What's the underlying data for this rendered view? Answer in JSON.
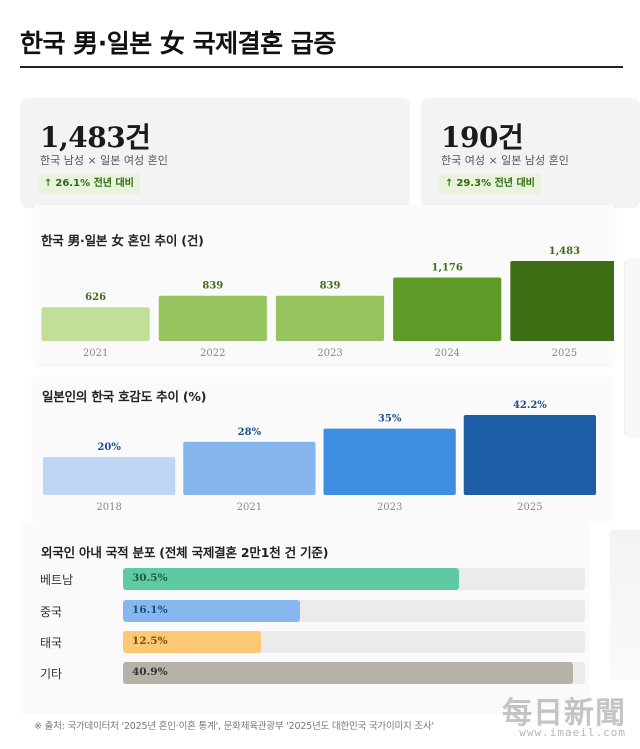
{
  "headline": "한국 男·일본 女 국제결혼 급증",
  "stats": [
    {
      "value": "1,483건",
      "desc": "한국 남성 × 일본 여성 혼인",
      "badge_arrow": "↑",
      "badge": "26.1% 전년 대비"
    },
    {
      "value": "190건",
      "desc": "한국 여성 × 일본 남성 혼인",
      "badge_arrow": "↑",
      "badge": "29.3% 전년 대비"
    }
  ],
  "chart_data": [
    {
      "type": "bar",
      "title": "한국 男·일본 女 혼인 추이 (건)",
      "categories": [
        "2021",
        "2022",
        "2023",
        "2024",
        "2025"
      ],
      "values": [
        626,
        839,
        839,
        1176,
        1483
      ],
      "value_labels": [
        "626",
        "839",
        "839",
        "1,176",
        "1,483"
      ],
      "colors": [
        "#c2df9a",
        "#97c45e",
        "#97c45e",
        "#5e9a26",
        "#3e6d14"
      ],
      "label_color": "#3e6d14",
      "ylim": [
        0,
        1483
      ]
    },
    {
      "type": "bar",
      "title": "일본인의 한국 호감도 추이 (%)",
      "categories": [
        "2018",
        "2021",
        "2023",
        "2025"
      ],
      "values": [
        20,
        28,
        35,
        42.2
      ],
      "value_labels": [
        "20%",
        "28%",
        "35%",
        "42.2%"
      ],
      "colors": [
        "#bcd6f4",
        "#84b6ed",
        "#3d8ee0",
        "#1e5ea6"
      ],
      "label_color": "#1e4e8c",
      "ylim": [
        0,
        42.2
      ]
    },
    {
      "type": "bar",
      "orientation": "horizontal",
      "title": "외국인 아내 국적 분포 (전체 국제결혼 2만1천 건 기준)",
      "categories": [
        "베트남",
        "중국",
        "태국",
        "기타"
      ],
      "values": [
        30.5,
        16.1,
        12.5,
        40.9
      ],
      "value_labels": [
        "30.5%",
        "16.1%",
        "12.5%",
        "40.9%"
      ],
      "colors": [
        "#5ecaa2",
        "#86b7ee",
        "#fdc873",
        "#b8b1a8"
      ],
      "text_colors": [
        "#1d5c45",
        "#1d4d86",
        "#7a4f0c",
        "#333333"
      ],
      "xlim": [
        0,
        42
      ]
    }
  ],
  "source": "※ 출처: 국가데이터처 '2025년 혼인·이혼 통계', 문화체육관광부 '2025년도 대한민국 국가이미지 조사'",
  "watermark": {
    "logo": "每日新聞",
    "url": "www.imaeil.com"
  }
}
